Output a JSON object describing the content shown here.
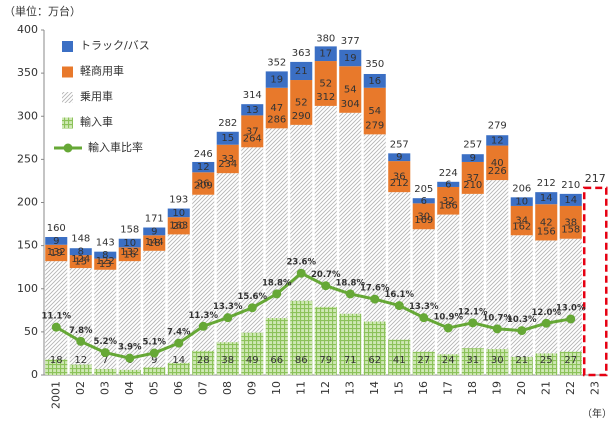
{
  "chart_data": {
    "type": "bar",
    "y_label": "（単位：万台）",
    "x_label": "（年）",
    "categories": [
      "2001",
      "02",
      "03",
      "04",
      "05",
      "06",
      "07",
      "08",
      "09",
      "10",
      "11",
      "12",
      "13",
      "14",
      "15",
      "16",
      "17",
      "18",
      "19",
      "20",
      "21",
      "22",
      "23"
    ],
    "ylim": [
      0,
      400
    ],
    "yticks": [
      0,
      50,
      100,
      150,
      200,
      250,
      300,
      350,
      400
    ],
    "y2lim": [
      0,
      80
    ],
    "series": [
      {
        "name": "トラック/バス",
        "color": "#3b6fc4",
        "stack": "top",
        "values": [
          9,
          8,
          8,
          10,
          9,
          10,
          12,
          15,
          13,
          19,
          21,
          17,
          19,
          16,
          9,
          6,
          6,
          9,
          12,
          10,
          14,
          14,
          null
        ]
      },
      {
        "name": "軽商用車",
        "color": "#e8792b",
        "stack": "middle",
        "values": [
          19,
          15,
          13,
          16,
          18,
          20,
          26,
          33,
          37,
          47,
          52,
          52,
          54,
          54,
          36,
          30,
          32,
          37,
          40,
          34,
          42,
          38,
          null
        ]
      },
      {
        "name": "乗用車",
        "color": "#b5b5b5",
        "stack": "bottom",
        "values": [
          132,
          124,
          122,
          132,
          144,
          163,
          209,
          234,
          264,
          286,
          290,
          312,
          304,
          279,
          212,
          169,
          186,
          210,
          226,
          162,
          156,
          158,
          null
        ]
      },
      {
        "name": "輸入車",
        "color": "#8cc25a",
        "stack": "overlay",
        "values": [
          18,
          12,
          7,
          6,
          9,
          14,
          28,
          38,
          49,
          66,
          86,
          79,
          71,
          62,
          41,
          27,
          24,
          31,
          30,
          21,
          25,
          27,
          null
        ]
      },
      {
        "name": "輸入車比率",
        "color": "#66a836",
        "type": "line",
        "axis": "y2",
        "values": [
          11.1,
          7.8,
          5.2,
          3.9,
          5.1,
          7.4,
          11.3,
          13.3,
          15.6,
          18.8,
          23.6,
          20.7,
          18.8,
          17.6,
          16.1,
          13.3,
          10.9,
          12.1,
          10.7,
          10.3,
          12.0,
          13.0,
          null
        ],
        "value_labels": [
          "11.1%",
          "7.8%",
          "5.2%",
          "3.9%",
          "5.1%",
          "7.4%",
          "11.3%",
          "13.3%",
          "15.6%",
          "18.8%",
          "23.6%",
          "20.7%",
          "18.8%",
          "17.6%",
          "16.1%",
          "13.3%",
          "10.9%",
          "12.1%",
          "10.7%",
          "10.3%",
          "12.0%",
          "13.0%",
          null
        ]
      }
    ],
    "totals": [
      160,
      148,
      143,
      158,
      171,
      193,
      246,
      282,
      314,
      352,
      363,
      380,
      377,
      350,
      257,
      205,
      224,
      257,
      279,
      206,
      212,
      210,
      217
    ],
    "dashed_color": "#e60012"
  }
}
